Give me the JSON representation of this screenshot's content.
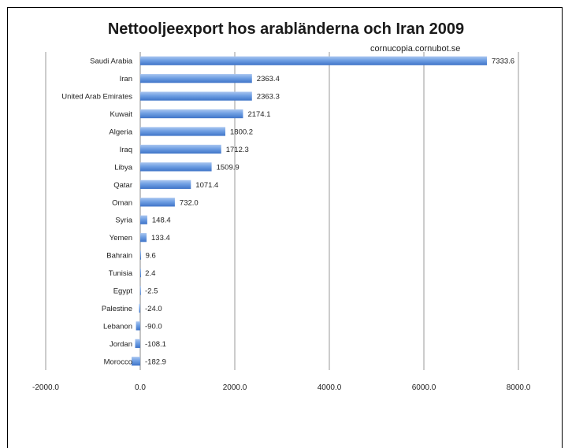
{
  "chart_data": {
    "type": "bar",
    "orientation": "horizontal",
    "title": "Nettooljeexport hos arabländerna och Iran 2009",
    "subtitle": "cornucopia.cornubot.se",
    "categories": [
      "Saudi Arabia",
      "Iran",
      "United Arab Emirates",
      "Kuwait",
      "Algeria",
      "Iraq",
      "Libya",
      "Qatar",
      "Oman",
      "Syria",
      "Yemen",
      "Bahrain",
      "Tunisia",
      "Egypt",
      "Palestine",
      "Lebanon",
      "Jordan",
      "Morocco"
    ],
    "values": [
      7333.6,
      2363.4,
      2363.3,
      2174.1,
      1800.2,
      1712.3,
      1509.9,
      1071.4,
      732.0,
      148.4,
      133.4,
      9.6,
      2.4,
      -2.5,
      -24.0,
      -90.0,
      -108.1,
      -182.9
    ],
    "value_labels": [
      "7333.6",
      "2363.4",
      "2363.3",
      "2174.1",
      "1800.2",
      "1712.3",
      "1509.9",
      "1071.4",
      "732.0",
      "148.4",
      "133.4",
      "9.6",
      "2.4",
      "-2.5",
      "-24.0",
      "-90.0",
      "-108.1",
      "-182.9"
    ],
    "xlim": [
      -2000,
      8000
    ],
    "xticks": [
      -2000,
      0,
      2000,
      4000,
      6000,
      8000
    ],
    "xtick_labels": [
      "-2000.0",
      "0.0",
      "2000.0",
      "4000.0",
      "6000.0",
      "8000.0"
    ],
    "grid": "vertical",
    "bar_color": "#5b8fd9"
  }
}
